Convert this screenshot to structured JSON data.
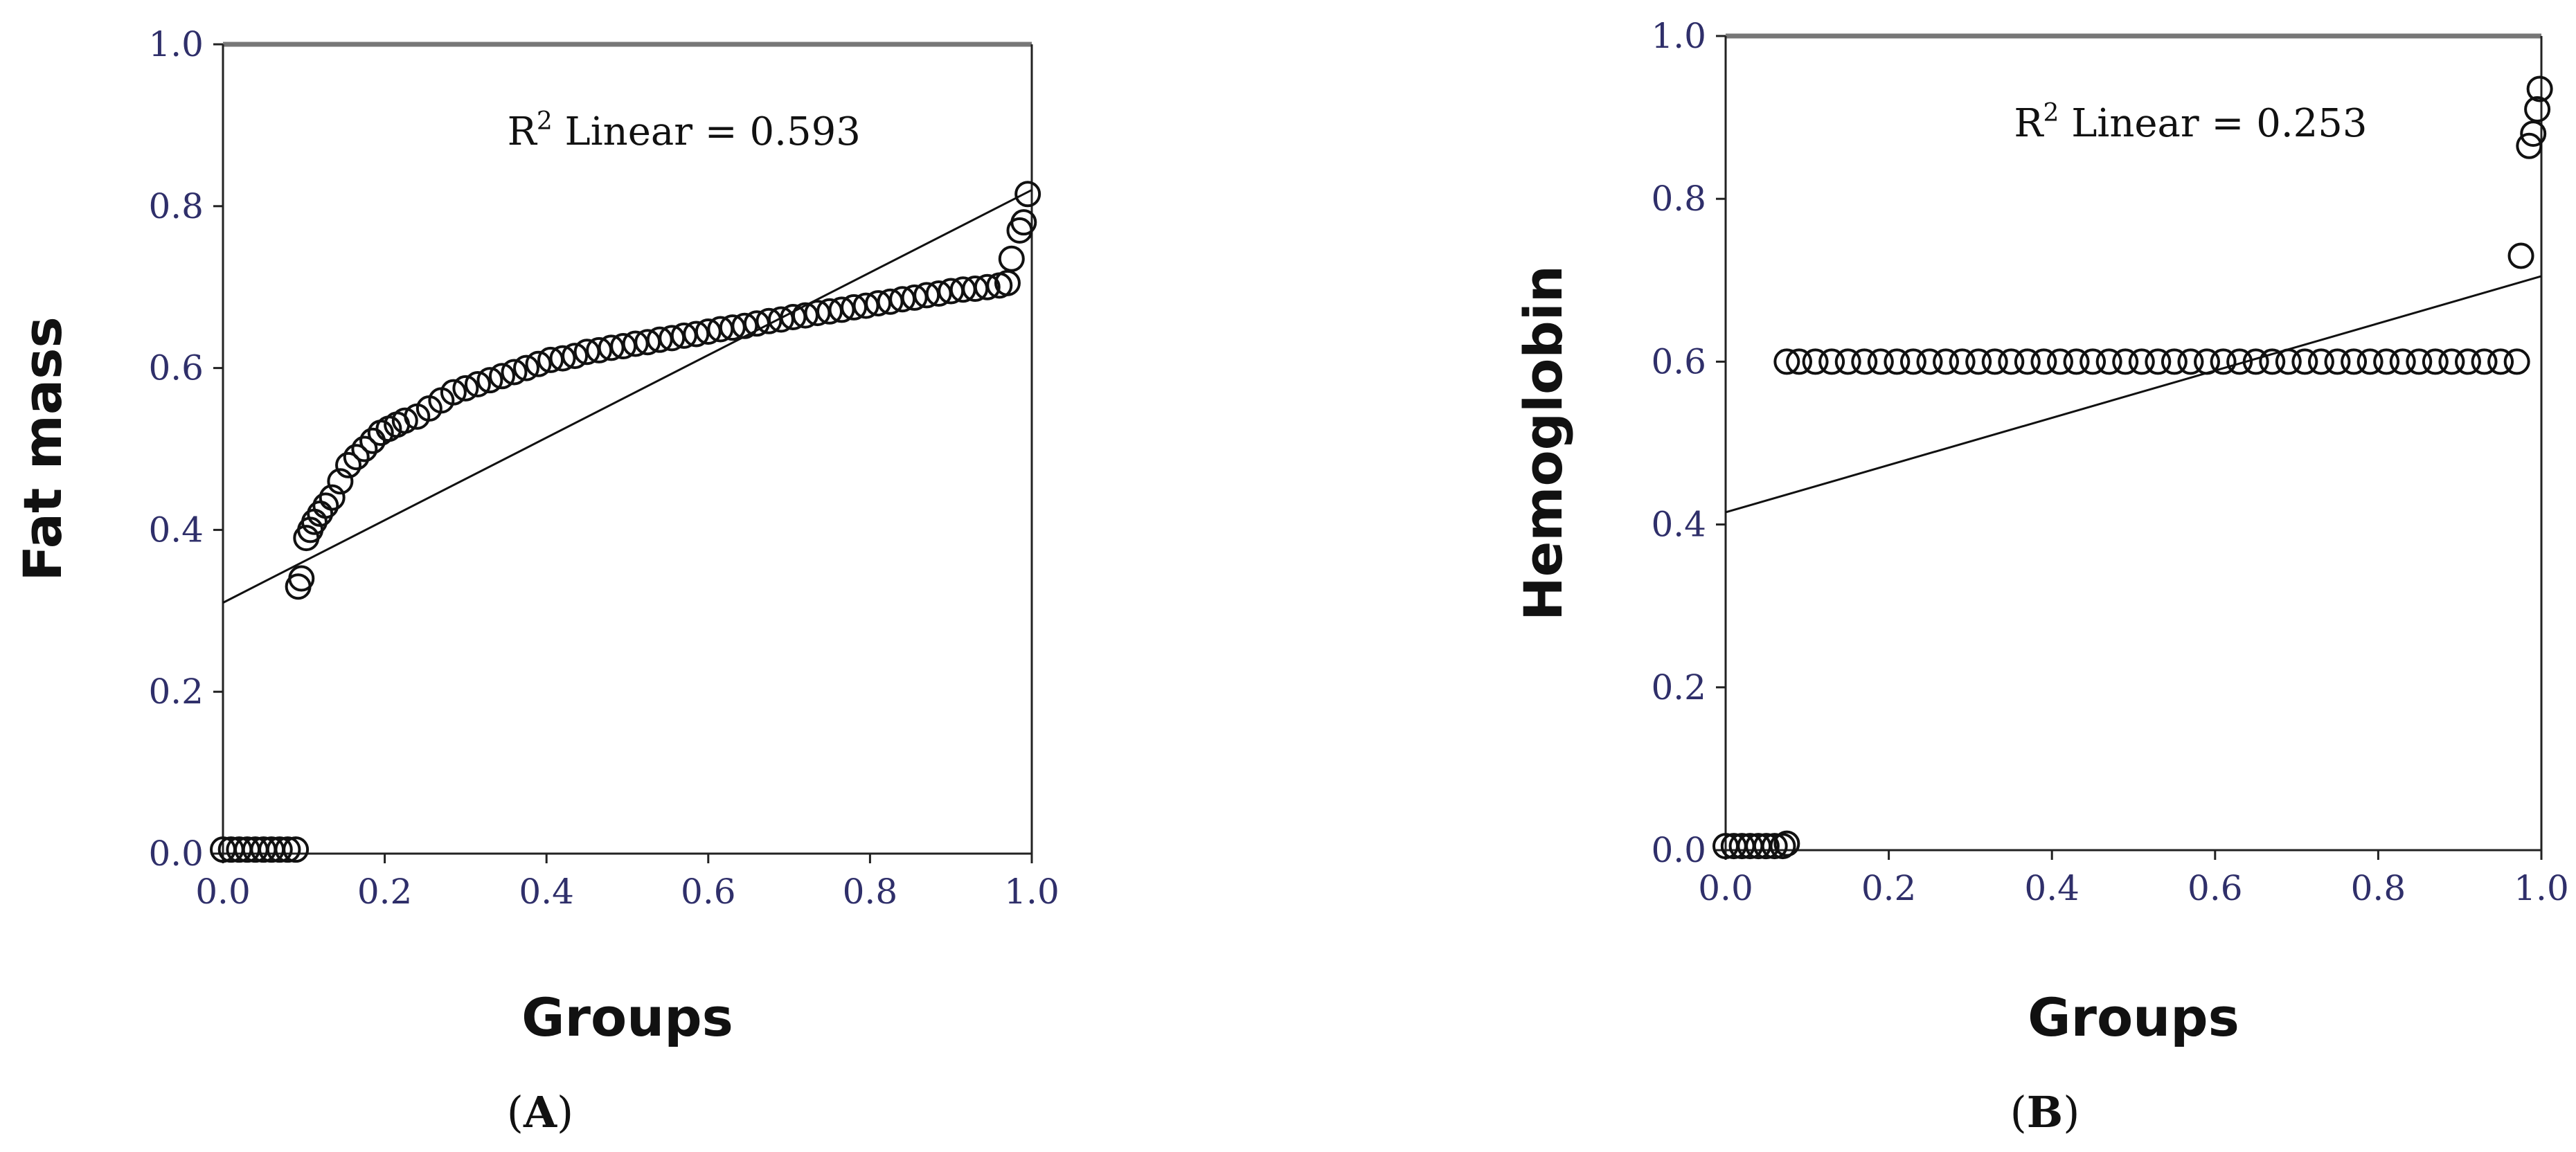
{
  "chart_data": [
    {
      "type": "scatter",
      "panel_label": "A",
      "xlabel": "Groups",
      "ylabel": "Fat mass",
      "xlim": [
        0.0,
        1.0
      ],
      "ylim": [
        0.0,
        1.0
      ],
      "x_ticks": [
        "0.0",
        "0.2",
        "0.4",
        "0.6",
        "0.8",
        "1.0"
      ],
      "y_ticks": [
        "0.0",
        "0.2",
        "0.4",
        "0.6",
        "0.8",
        "1.0"
      ],
      "annotation": {
        "prefix": "R",
        "sup": "2",
        "text": " Linear = 0.593"
      },
      "fit_line": {
        "intercept": 0.31,
        "slope": 0.51
      },
      "grid": false,
      "marker": "open-circle",
      "points": [
        [
          0.0,
          0.005
        ],
        [
          0.01,
          0.005
        ],
        [
          0.02,
          0.005
        ],
        [
          0.03,
          0.005
        ],
        [
          0.04,
          0.005
        ],
        [
          0.05,
          0.005
        ],
        [
          0.06,
          0.005
        ],
        [
          0.07,
          0.005
        ],
        [
          0.08,
          0.005
        ],
        [
          0.09,
          0.005
        ],
        [
          0.093,
          0.33
        ],
        [
          0.097,
          0.34
        ],
        [
          0.103,
          0.39
        ],
        [
          0.108,
          0.4
        ],
        [
          0.113,
          0.41
        ],
        [
          0.12,
          0.42
        ],
        [
          0.127,
          0.43
        ],
        [
          0.135,
          0.44
        ],
        [
          0.145,
          0.46
        ],
        [
          0.155,
          0.48
        ],
        [
          0.165,
          0.49
        ],
        [
          0.175,
          0.5
        ],
        [
          0.185,
          0.51
        ],
        [
          0.195,
          0.52
        ],
        [
          0.205,
          0.525
        ],
        [
          0.215,
          0.53
        ],
        [
          0.225,
          0.535
        ],
        [
          0.24,
          0.54
        ],
        [
          0.255,
          0.55
        ],
        [
          0.27,
          0.56
        ],
        [
          0.285,
          0.57
        ],
        [
          0.3,
          0.575
        ],
        [
          0.315,
          0.58
        ],
        [
          0.33,
          0.585
        ],
        [
          0.345,
          0.59
        ],
        [
          0.36,
          0.595
        ],
        [
          0.375,
          0.6
        ],
        [
          0.39,
          0.605
        ],
        [
          0.405,
          0.61
        ],
        [
          0.42,
          0.612
        ],
        [
          0.435,
          0.615
        ],
        [
          0.45,
          0.62
        ],
        [
          0.465,
          0.622
        ],
        [
          0.48,
          0.625
        ],
        [
          0.495,
          0.627
        ],
        [
          0.51,
          0.63
        ],
        [
          0.525,
          0.632
        ],
        [
          0.54,
          0.635
        ],
        [
          0.555,
          0.637
        ],
        [
          0.57,
          0.64
        ],
        [
          0.585,
          0.642
        ],
        [
          0.6,
          0.645
        ],
        [
          0.615,
          0.648
        ],
        [
          0.63,
          0.65
        ],
        [
          0.645,
          0.652
        ],
        [
          0.66,
          0.655
        ],
        [
          0.675,
          0.658
        ],
        [
          0.69,
          0.66
        ],
        [
          0.705,
          0.663
        ],
        [
          0.72,
          0.665
        ],
        [
          0.735,
          0.668
        ],
        [
          0.75,
          0.67
        ],
        [
          0.765,
          0.672
        ],
        [
          0.78,
          0.675
        ],
        [
          0.795,
          0.677
        ],
        [
          0.81,
          0.68
        ],
        [
          0.825,
          0.682
        ],
        [
          0.84,
          0.685
        ],
        [
          0.855,
          0.687
        ],
        [
          0.87,
          0.69
        ],
        [
          0.885,
          0.692
        ],
        [
          0.9,
          0.695
        ],
        [
          0.915,
          0.697
        ],
        [
          0.93,
          0.698
        ],
        [
          0.945,
          0.7
        ],
        [
          0.96,
          0.702
        ],
        [
          0.97,
          0.705
        ],
        [
          0.975,
          0.735
        ],
        [
          0.985,
          0.77
        ],
        [
          0.99,
          0.78
        ],
        [
          0.995,
          0.815
        ]
      ]
    },
    {
      "type": "scatter",
      "panel_label": "B",
      "xlabel": "Groups",
      "ylabel": "Hemoglobin",
      "xlim": [
        0.0,
        1.0
      ],
      "ylim": [
        0.0,
        1.0
      ],
      "x_ticks": [
        "0.0",
        "0.2",
        "0.4",
        "0.6",
        "0.8",
        "1.0"
      ],
      "y_ticks": [
        "0.0",
        "0.2",
        "0.4",
        "0.6",
        "0.8",
        "1.0"
      ],
      "annotation": {
        "prefix": "R",
        "sup": "2",
        "text": " Linear = 0.253"
      },
      "fit_line": {
        "intercept": 0.415,
        "slope": 0.29
      },
      "grid": false,
      "marker": "open-circle",
      "points": [
        [
          0.0,
          0.005
        ],
        [
          0.01,
          0.005
        ],
        [
          0.02,
          0.005
        ],
        [
          0.03,
          0.005
        ],
        [
          0.04,
          0.005
        ],
        [
          0.05,
          0.005
        ],
        [
          0.06,
          0.005
        ],
        [
          0.07,
          0.005
        ],
        [
          0.075,
          0.008
        ],
        [
          0.075,
          0.6
        ],
        [
          0.09,
          0.6
        ],
        [
          0.11,
          0.6
        ],
        [
          0.13,
          0.6
        ],
        [
          0.15,
          0.6
        ],
        [
          0.17,
          0.6
        ],
        [
          0.19,
          0.6
        ],
        [
          0.21,
          0.6
        ],
        [
          0.23,
          0.6
        ],
        [
          0.25,
          0.6
        ],
        [
          0.27,
          0.6
        ],
        [
          0.29,
          0.6
        ],
        [
          0.31,
          0.6
        ],
        [
          0.33,
          0.6
        ],
        [
          0.35,
          0.6
        ],
        [
          0.37,
          0.6
        ],
        [
          0.39,
          0.6
        ],
        [
          0.41,
          0.6
        ],
        [
          0.43,
          0.6
        ],
        [
          0.45,
          0.6
        ],
        [
          0.47,
          0.6
        ],
        [
          0.49,
          0.6
        ],
        [
          0.51,
          0.6
        ],
        [
          0.53,
          0.6
        ],
        [
          0.55,
          0.6
        ],
        [
          0.57,
          0.6
        ],
        [
          0.59,
          0.6
        ],
        [
          0.61,
          0.6
        ],
        [
          0.63,
          0.6
        ],
        [
          0.65,
          0.6
        ],
        [
          0.67,
          0.6
        ],
        [
          0.69,
          0.6
        ],
        [
          0.71,
          0.6
        ],
        [
          0.73,
          0.6
        ],
        [
          0.75,
          0.6
        ],
        [
          0.77,
          0.6
        ],
        [
          0.79,
          0.6
        ],
        [
          0.81,
          0.6
        ],
        [
          0.83,
          0.6
        ],
        [
          0.85,
          0.6
        ],
        [
          0.87,
          0.6
        ],
        [
          0.89,
          0.6
        ],
        [
          0.91,
          0.6
        ],
        [
          0.93,
          0.6
        ],
        [
          0.95,
          0.6
        ],
        [
          0.97,
          0.6
        ],
        [
          0.975,
          0.73
        ],
        [
          0.985,
          0.865
        ],
        [
          0.99,
          0.88
        ],
        [
          0.995,
          0.91
        ],
        [
          0.998,
          0.935
        ]
      ]
    }
  ]
}
